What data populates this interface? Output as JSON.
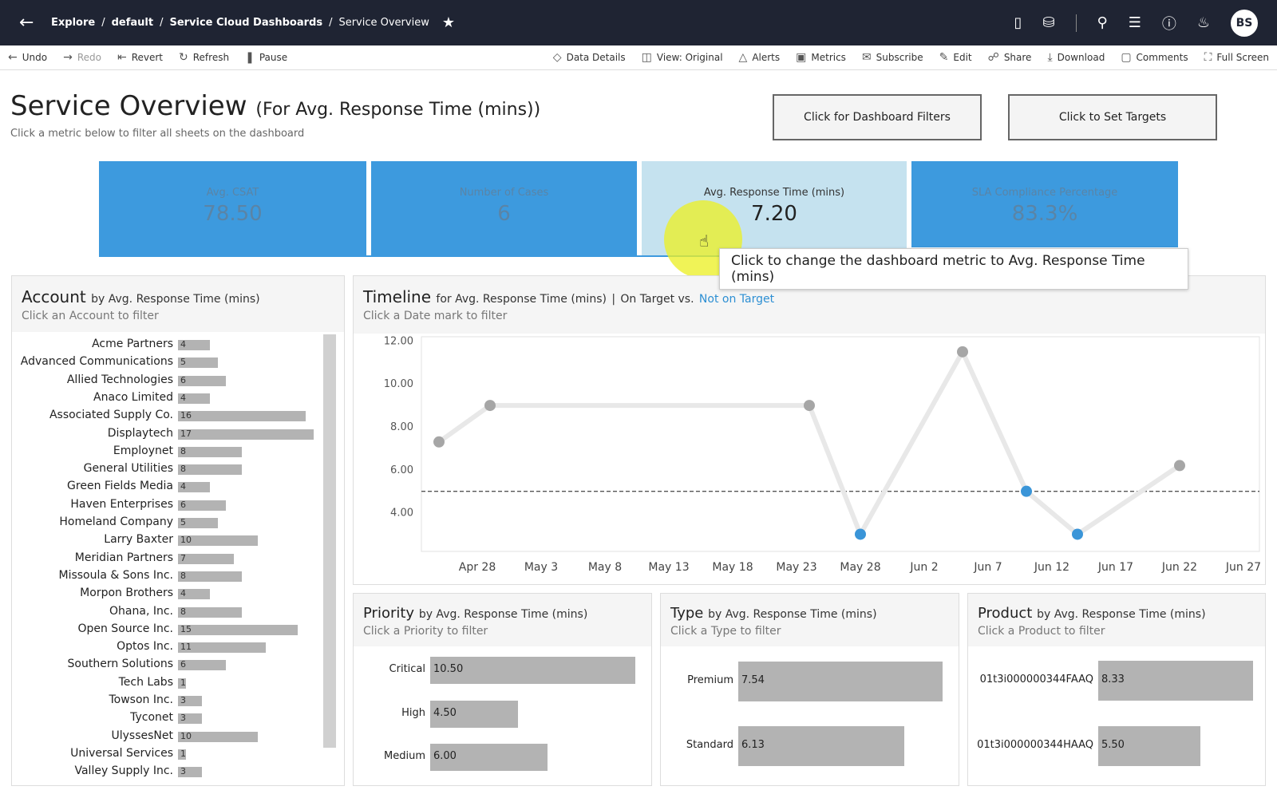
{
  "topbar": {
    "crumbs": [
      "Explore",
      "default",
      "Service Cloud Dashboards",
      "Service Overview"
    ],
    "avatar": "BS"
  },
  "toolbar": {
    "left": [
      "Undo",
      "Redo",
      "Revert",
      "Refresh",
      "Pause"
    ],
    "right": [
      "Data Details",
      "View: Original",
      "Alerts",
      "Metrics",
      "Subscribe",
      "Edit",
      "Share",
      "Download",
      "Comments",
      "Full Screen"
    ]
  },
  "header": {
    "title": "Service Overview",
    "title_sub": "(For Avg. Response Time (mins))",
    "subtitle": "Click a metric below to filter all sheets on the dashboard",
    "filters_button": "Click for Dashboard Filters",
    "targets_button": "Click to Set Targets"
  },
  "kpis": [
    {
      "label": "Avg. CSAT",
      "value": "78.50"
    },
    {
      "label": "Number of Cases",
      "value": "6"
    },
    {
      "label": "Avg. Response Time (mins)",
      "value": "7.20"
    },
    {
      "label": "SLA Compliance Percentage",
      "value": "83.3%"
    }
  ],
  "tooltip": "Click to change the dashboard metric to Avg. Response Time (mins)",
  "account": {
    "title": "Account",
    "by": "by Avg. Response Time (mins)",
    "hint": "Click an Account to filter",
    "rows": [
      {
        "name": "Acme Partners",
        "value": 4
      },
      {
        "name": "Advanced Communications",
        "value": 5
      },
      {
        "name": "Allied Technologies",
        "value": 6
      },
      {
        "name": "Anaco Limited",
        "value": 4
      },
      {
        "name": "Associated Supply Co.",
        "value": 16
      },
      {
        "name": "Displaytech",
        "value": 17
      },
      {
        "name": "Employnet",
        "value": 8
      },
      {
        "name": "General Utilities",
        "value": 8
      },
      {
        "name": "Green Fields Media",
        "value": 4
      },
      {
        "name": "Haven Enterprises",
        "value": 6
      },
      {
        "name": "Homeland Company",
        "value": 5
      },
      {
        "name": "Larry Baxter",
        "value": 10
      },
      {
        "name": "Meridian Partners",
        "value": 7
      },
      {
        "name": "Missoula & Sons Inc.",
        "value": 8
      },
      {
        "name": "Morpon Brothers",
        "value": 4
      },
      {
        "name": "Ohana, Inc.",
        "value": 8
      },
      {
        "name": "Open Source Inc.",
        "value": 15
      },
      {
        "name": "Optos Inc.",
        "value": 11
      },
      {
        "name": "Southern Solutions",
        "value": 6
      },
      {
        "name": "Tech Labs",
        "value": 1
      },
      {
        "name": "Towson Inc.",
        "value": 3
      },
      {
        "name": "Tyconet",
        "value": 3
      },
      {
        "name": "UlyssesNet",
        "value": 10
      },
      {
        "name": "Universal Services",
        "value": 1
      },
      {
        "name": "Valley Supply Inc.",
        "value": 3
      }
    ]
  },
  "timeline": {
    "title": "Timeline",
    "by": "for Avg. Response Time (mins)",
    "legend_sep": "|",
    "legend_on": "On Target vs.",
    "legend_off": "Not on Target",
    "hint": "Click a Date mark to filter"
  },
  "chart_data": {
    "type": "line",
    "x_ticks": [
      "Apr 28",
      "May 3",
      "May 8",
      "May 13",
      "May 18",
      "May 23",
      "May 28",
      "Jun 2",
      "Jun 7",
      "Jun 12",
      "Jun 17",
      "Jun 22",
      "Jun 27"
    ],
    "y_ticks": [
      "12.00",
      "10.00",
      "8.00",
      "6.00",
      "4.00"
    ],
    "ylim": [
      2.2,
      12.2
    ],
    "target": 5.0,
    "points": [
      {
        "x": "Apr 25",
        "y": 7.3,
        "on_target": true
      },
      {
        "x": "Apr 29",
        "y": 9.0,
        "on_target": true
      },
      {
        "x": "May 24",
        "y": 9.0,
        "on_target": true
      },
      {
        "x": "May 28",
        "y": 3.0,
        "on_target": false
      },
      {
        "x": "Jun 5",
        "y": 11.5,
        "on_target": true
      },
      {
        "x": "Jun 10",
        "y": 5.0,
        "on_target": false
      },
      {
        "x": "Jun 14",
        "y": 3.0,
        "on_target": false
      },
      {
        "x": "Jun 22",
        "y": 6.2,
        "on_target": true
      }
    ],
    "colors": {
      "on_target": "#a6a6a6",
      "not_on_target": "#3a95d8",
      "line": "#e8e8e8",
      "target_line": "#555555"
    }
  },
  "priority": {
    "title": "Priority",
    "by": "by Avg. Response Time (mins)",
    "hint": "Click a Priority to filter",
    "rows": [
      {
        "label": "Critical",
        "value": 10.5,
        "text": "10.50"
      },
      {
        "label": "High",
        "value": 4.5,
        "text": "4.50"
      },
      {
        "label": "Medium",
        "value": 6.0,
        "text": "6.00"
      }
    ]
  },
  "type_panel": {
    "title": "Type",
    "by": "by Avg. Response Time (mins)",
    "hint": "Click a Type to filter",
    "rows": [
      {
        "label": "Premium",
        "value": 7.54,
        "text": "7.54"
      },
      {
        "label": "Standard",
        "value": 6.13,
        "text": "6.13"
      }
    ]
  },
  "product": {
    "title": "Product",
    "by": "by Avg. Response Time (mins)",
    "hint": "Click a Product to filter",
    "rows": [
      {
        "label": "01t3i000000344FAAQ",
        "value": 8.33,
        "text": "8.33"
      },
      {
        "label": "01t3i000000344HAAQ",
        "value": 5.5,
        "text": "5.50"
      }
    ]
  }
}
